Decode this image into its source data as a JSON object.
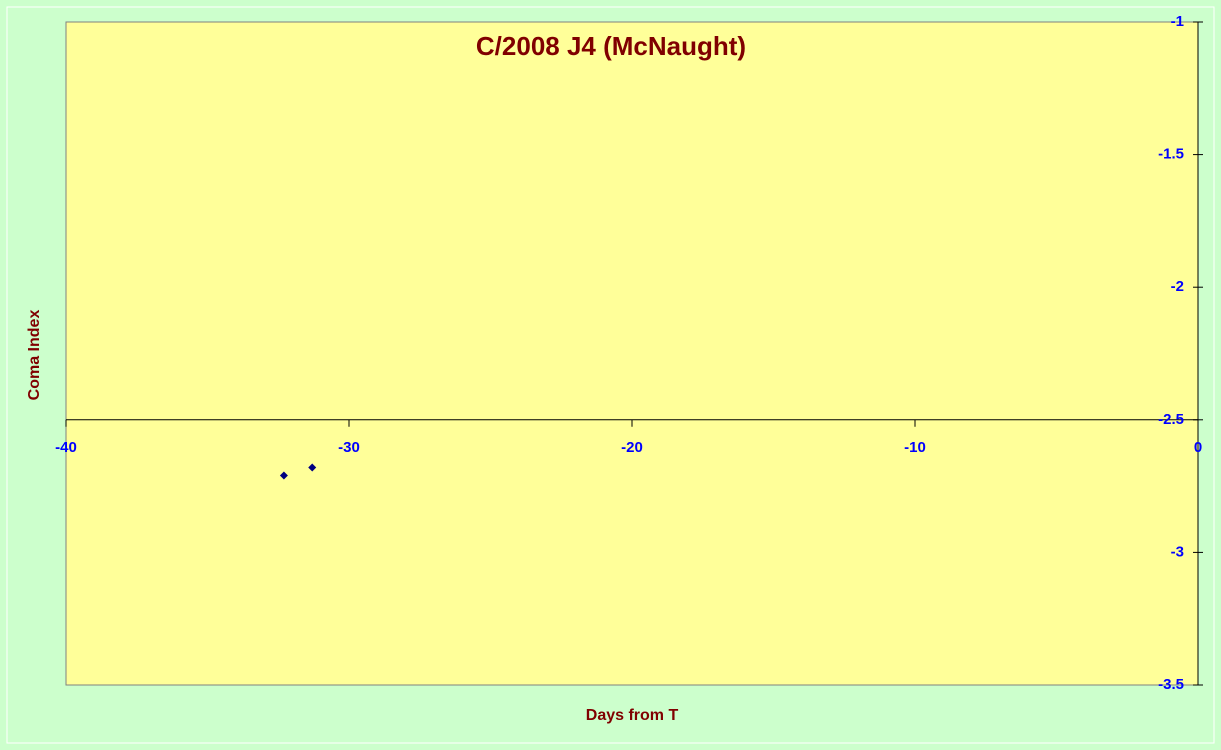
{
  "chart_data": {
    "type": "scatter",
    "title": "C/2008 J4 (McNaught)",
    "x_label": "Days from T",
    "y_label": "Coma Index",
    "series": [
      {
        "name": "Coma Index",
        "color": "#000080",
        "x": [
          -32.3,
          -31.3
        ],
        "values": [
          -2.71,
          -2.68
        ]
      }
    ],
    "xlim": [
      -40,
      0
    ],
    "xticks": [
      -40,
      -30,
      -20,
      -10,
      0
    ],
    "ylim": [
      -3.5,
      -1
    ],
    "yticks": [
      -1,
      -1.5,
      -2,
      -2.5,
      -3,
      -3.5
    ],
    "x_axis_crosses_y": -2.5,
    "y_axis_position": "right",
    "grid": false,
    "background": "#ccffcc",
    "plot_background": "#ffff99"
  }
}
